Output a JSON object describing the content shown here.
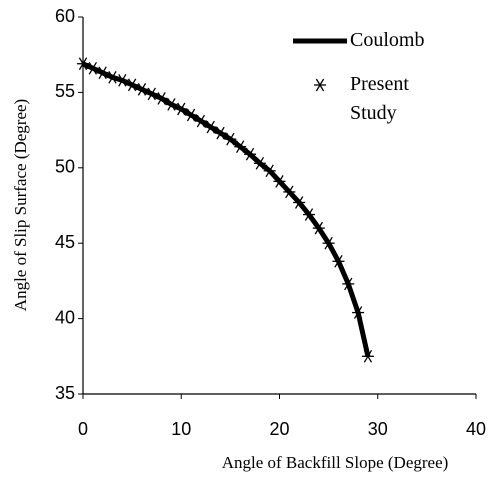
{
  "chart_data": {
    "type": "line",
    "x_label": "Angle of Backfill Slope (Degree)",
    "y_label": "Angle of Slip Surface (Degree)",
    "x": [
      0,
      1,
      2,
      3,
      4,
      5,
      6,
      7,
      8,
      9,
      10,
      11,
      12,
      13,
      14,
      15,
      16,
      17,
      18,
      19,
      20,
      21,
      22,
      23,
      24,
      25,
      26,
      27,
      28,
      29
    ],
    "series": [
      {
        "name": "Coulomb",
        "color": "#000000",
        "style": "line",
        "values": [
          56.9,
          56.6,
          56.3,
          56.0,
          55.8,
          55.5,
          55.2,
          54.9,
          54.6,
          54.2,
          53.9,
          53.5,
          53.1,
          52.7,
          52.3,
          51.9,
          51.4,
          50.9,
          50.3,
          49.8,
          49.1,
          48.4,
          47.7,
          46.9,
          46.0,
          45.0,
          43.8,
          42.3,
          40.4,
          37.5
        ]
      },
      {
        "name": "Present Study",
        "color": "#000000",
        "style": "marker",
        "values": [
          56.9,
          56.6,
          56.3,
          56.0,
          55.8,
          55.5,
          55.2,
          54.9,
          54.6,
          54.2,
          53.9,
          53.5,
          53.1,
          52.7,
          52.3,
          51.9,
          51.4,
          50.9,
          50.3,
          49.8,
          49.1,
          48.4,
          47.7,
          46.9,
          46.0,
          45.0,
          43.8,
          42.3,
          40.4,
          37.5
        ]
      }
    ],
    "xlim": [
      0,
      40
    ],
    "xticks": [
      0,
      10,
      20,
      30,
      40
    ],
    "ylim": [
      35,
      60
    ],
    "yticks": [
      35,
      40,
      45,
      50,
      55,
      60
    ],
    "grid": false,
    "legend": "upper right"
  }
}
